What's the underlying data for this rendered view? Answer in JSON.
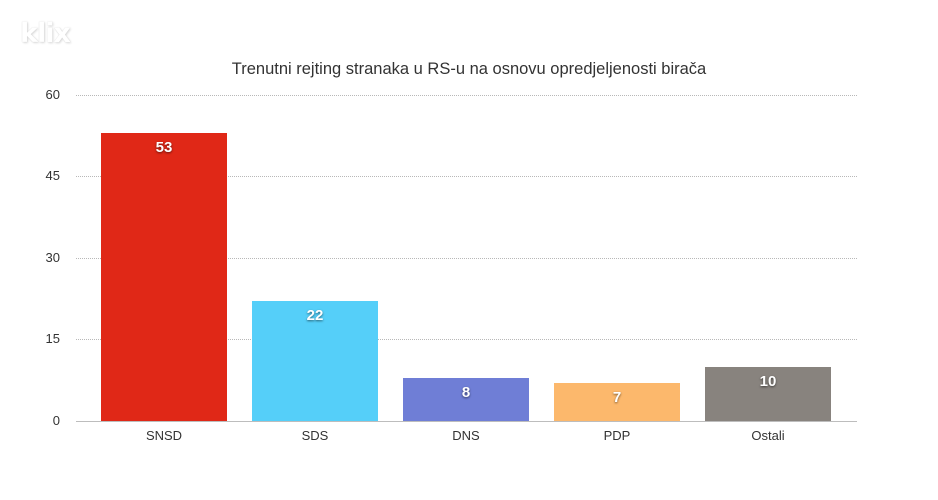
{
  "logo": {
    "text": "klix"
  },
  "chart_data": {
    "type": "bar",
    "title": "Trenutni rejting stranaka u RS-u na osnovu opredjeljenosti birača",
    "xlabel": "",
    "ylabel": "",
    "categories": [
      "SNSD",
      "SDS",
      "DNS",
      "PDP",
      "Ostali"
    ],
    "values": [
      53,
      22,
      8,
      7,
      10
    ],
    "value_labels": [
      "53",
      "22",
      "8",
      "7",
      "10"
    ],
    "colors": [
      "#e02817",
      "#55cff9",
      "#6f7ed6",
      "#fcb86c",
      "#88837e"
    ],
    "ylim": [
      0,
      60
    ],
    "yticks": [
      "60",
      "45",
      "30",
      "15",
      "0"
    ],
    "grid": true,
    "legend": null
  }
}
